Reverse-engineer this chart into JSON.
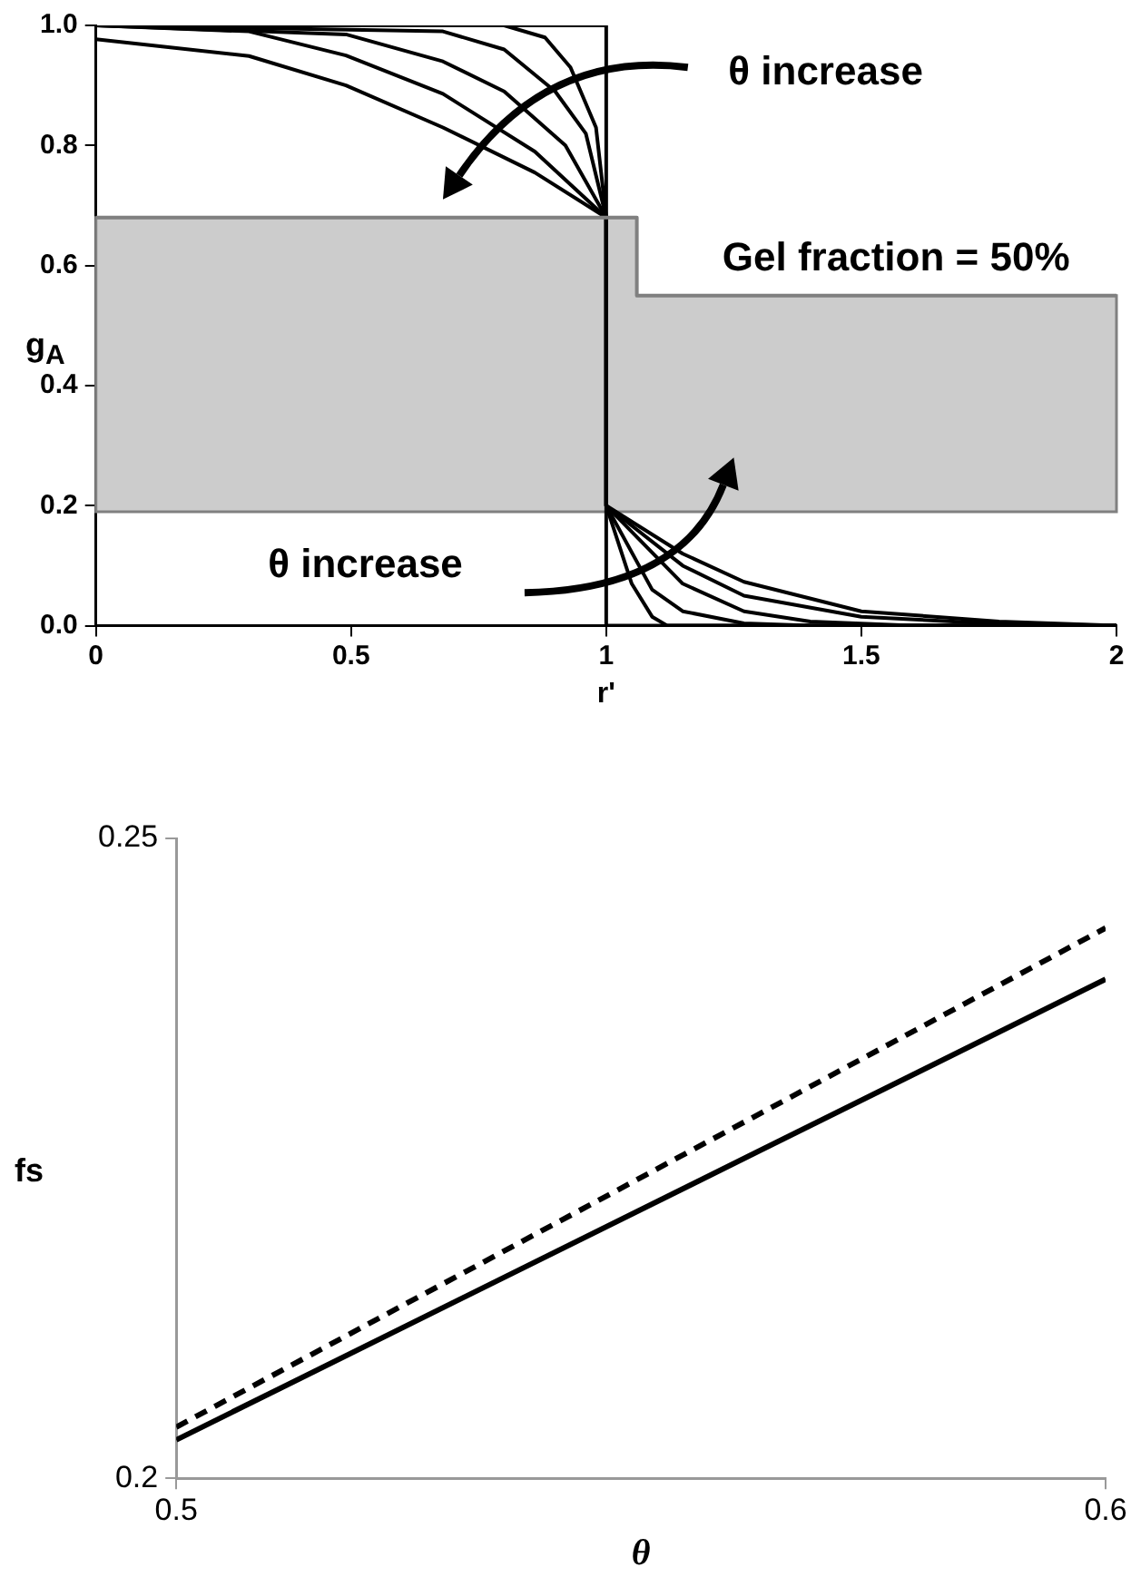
{
  "chart_data": [
    {
      "type": "line",
      "xlabel": "r'",
      "ylabel": "g$_{A}$",
      "xlim": [
        0,
        2
      ],
      "ylim": [
        0,
        1
      ],
      "xticks": [
        0,
        0.5,
        1,
        1.5,
        2
      ],
      "yticks": [
        {
          "value": 0,
          "label": "0.0"
        },
        {
          "value": 0.2,
          "label": "0.2"
        },
        {
          "value": 0.4,
          "label": "0.4"
        },
        {
          "value": 0.6,
          "label": "0.6"
        },
        {
          "value": 0.8,
          "label": "0.8"
        },
        {
          "value": 1,
          "label": "1.0"
        }
      ],
      "marker": "none",
      "series": [
        {
          "color": "#808080",
          "x": [
            0,
            1.06,
            1.06,
            2
          ],
          "values": [
            0.68,
            0.68,
            0.55,
            0.55
          ],
          "lower": [
            0.19,
            0.19,
            0.19,
            0.19
          ],
          "upper": [
            0.68,
            0.68,
            0.55,
            0.55
          ]
        },
        {
          "color": "#000000",
          "x": [
            0,
            1,
            1,
            2
          ],
          "values": [
            1,
            1,
            0,
            0
          ]
        },
        {
          "color": "#000000",
          "x": [
            0,
            0.3,
            0.49,
            0.68,
            0.86,
            1,
            1,
            1.15,
            1.27,
            1.5,
            1.77,
            2
          ],
          "values": [
            0.977,
            0.949,
            0.9,
            0.83,
            0.755,
            0.68,
            0.2,
            0.12,
            0.073,
            0.024,
            0.007,
            0
          ]
        },
        {
          "color": "#000000",
          "x": [
            0,
            0.3,
            0.49,
            0.68,
            0.86,
            1,
            1,
            1.15,
            1.27,
            1.5,
            1.75,
            2
          ],
          "values": [
            1,
            0.99,
            0.95,
            0.886,
            0.79,
            0.68,
            0.2,
            0.1,
            0.05,
            0.015,
            0.004,
            0
          ]
        },
        {
          "color": "#000000",
          "x": [
            0,
            0.49,
            0.68,
            0.8,
            0.92,
            1,
            1,
            1.15,
            1.27,
            1.4,
            1.6,
            2
          ],
          "values": [
            1,
            0.985,
            0.94,
            0.89,
            0.8,
            0.68,
            0.2,
            0.07,
            0.024,
            0.007,
            0,
            0
          ]
        },
        {
          "color": "#000000",
          "x": [
            0,
            0.68,
            0.8,
            0.9,
            0.96,
            1,
            1,
            1.09,
            1.15,
            1.27,
            1.4,
            2
          ],
          "values": [
            1,
            0.99,
            0.96,
            0.89,
            0.82,
            0.68,
            0.2,
            0.06,
            0.024,
            0.004,
            0,
            0
          ]
        },
        {
          "color": "#000000",
          "x": [
            0,
            0.8,
            0.88,
            0.93,
            0.98,
            1,
            1,
            1.05,
            1.09,
            1.12,
            2
          ],
          "values": [
            1,
            1,
            0.98,
            0.93,
            0.83,
            0.68,
            0.2,
            0.07,
            0.015,
            0,
            0
          ]
        }
      ],
      "annotations": [
        "θ increase",
        "Gel fraction = 50%",
        "θ increase"
      ]
    },
    {
      "type": "line",
      "xlabel": "θ",
      "ylabel": "fs",
      "xlim": [
        0.5,
        0.6
      ],
      "ylim": [
        0.2,
        0.25
      ],
      "xticks": [
        0.5,
        0.6
      ],
      "yticks": [
        0.2,
        0.25
      ],
      "marker": "none",
      "series": [
        {
          "color": "#000000",
          "x": [
            0.5,
            0.6
          ],
          "values": [
            0.203,
            0.239
          ]
        },
        {
          "color": "#000000",
          "line_style": "dashed",
          "x": [
            0.5,
            0.6
          ],
          "values": [
            0.204,
            0.243
          ]
        }
      ]
    }
  ]
}
